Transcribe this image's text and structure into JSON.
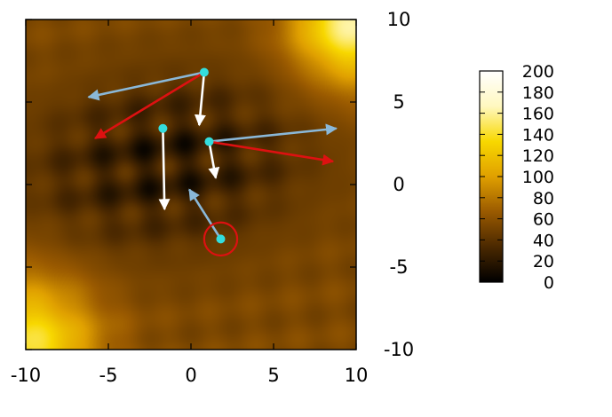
{
  "chart_data": {
    "type": "heatmap",
    "xlim": [
      -10,
      10
    ],
    "ylim": [
      -10,
      10
    ],
    "x_ticks": [
      "-10",
      "-5",
      "0",
      "5",
      "10"
    ],
    "y_ticks": [
      "10",
      "5",
      "0",
      "-5",
      "-10"
    ],
    "colorbar": {
      "min": 0,
      "max": 200,
      "ticks": [
        "200",
        "180",
        "160",
        "140",
        "120",
        "100",
        "80",
        "60",
        "40",
        "20",
        "0"
      ],
      "colormap": [
        "#000000",
        "#4a2800",
        "#9a5a00",
        "#e0a000",
        "#f8d800",
        "#fff8c0",
        "#ffffff"
      ]
    },
    "field": {
      "background_value": 55,
      "lattice_spacing": 2.55,
      "lattice_angle_deg": 8,
      "depth": 50,
      "depression_center": [
        -1.5,
        1.3
      ],
      "depression_extent": [
        8.5,
        5.2
      ],
      "bright_corners": [
        "top-right",
        "bottom-left"
      ]
    },
    "markers": [
      {
        "name": "point-a",
        "x": 0.8,
        "y": 6.8,
        "color": "#33dddd"
      },
      {
        "name": "point-b",
        "x": -1.7,
        "y": 3.4,
        "color": "#33dddd"
      },
      {
        "name": "point-c",
        "x": 1.1,
        "y": 2.6,
        "color": "#33dddd"
      },
      {
        "name": "point-d",
        "x": 1.8,
        "y": -3.3,
        "color": "#33dddd",
        "ring_color": "#dd1111",
        "ring_radius": 1
      }
    ],
    "arrows": [
      {
        "name": "arrow-a-blue",
        "from": [
          0.8,
          6.8
        ],
        "to": [
          -6.2,
          5.3
        ],
        "color": "#8ab8d8"
      },
      {
        "name": "arrow-a-red",
        "from": [
          0.8,
          6.8
        ],
        "to": [
          -5.8,
          2.8
        ],
        "color": "#dd1111"
      },
      {
        "name": "arrow-a-white",
        "from": [
          0.8,
          6.8
        ],
        "to": [
          0.5,
          3.6
        ],
        "color": "#ffffff"
      },
      {
        "name": "arrow-b-white",
        "from": [
          -1.7,
          3.4
        ],
        "to": [
          -1.6,
          -1.5
        ],
        "color": "#ffffff"
      },
      {
        "name": "arrow-c-blue",
        "from": [
          1.1,
          2.6
        ],
        "to": [
          8.8,
          3.4
        ],
        "color": "#8ab8d8"
      },
      {
        "name": "arrow-c-red",
        "from": [
          1.1,
          2.6
        ],
        "to": [
          8.6,
          1.4
        ],
        "color": "#dd1111"
      },
      {
        "name": "arrow-c-white",
        "from": [
          1.1,
          2.6
        ],
        "to": [
          1.5,
          0.4
        ],
        "color": "#ffffff"
      },
      {
        "name": "arrow-d-blue",
        "from": [
          1.8,
          -3.3
        ],
        "to": [
          -0.1,
          -0.3
        ],
        "color": "#8ab8d8"
      }
    ]
  }
}
